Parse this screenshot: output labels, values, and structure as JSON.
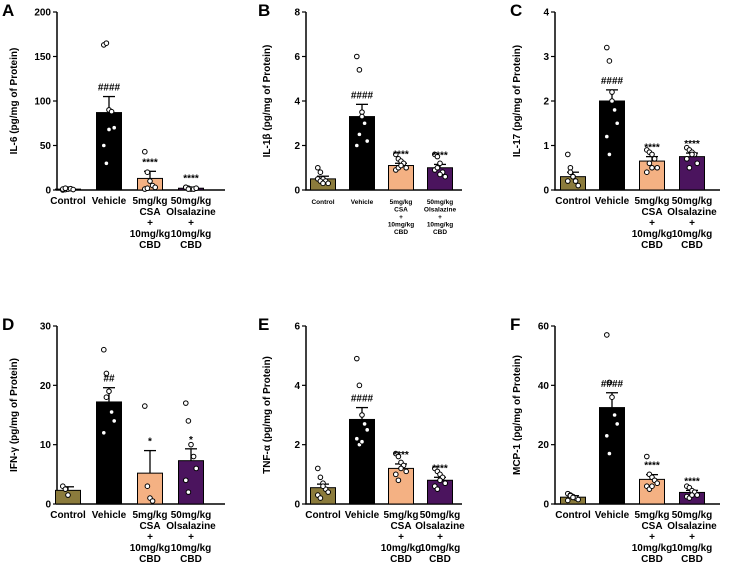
{
  "chart_data": [
    {
      "panel": "A",
      "type": "bar",
      "ylabel": "IL-6 (pg/mg of Protein)",
      "ylim": [
        0,
        200
      ],
      "yticks": [
        "0",
        "50",
        "100",
        "150",
        "200"
      ],
      "categories": [
        {
          "label": "Control",
          "lines": [
            "Control"
          ]
        },
        {
          "label": "Vehicle",
          "lines": [
            "Vehicle"
          ]
        },
        {
          "label": "5mg/kg CSA + 10mg/kg CBD",
          "lines": [
            "5mg/kg",
            "CSA",
            "+",
            "10mg/kg",
            "CBD"
          ]
        },
        {
          "label": "50mg/kg Olsalazine + 10mg/kg CBD",
          "lines": [
            "50mg/kg",
            "Olsalazine",
            "+",
            "10mg/kg",
            "CBD"
          ]
        }
      ],
      "values": [
        1,
        87,
        13,
        2
      ],
      "errors": [
        0.5,
        18,
        8,
        1
      ],
      "points": [
        [
          0,
          0.5,
          1,
          1.5,
          0.5,
          1,
          2
        ],
        [
          163,
          165,
          90,
          88,
          70,
          50,
          30,
          68
        ],
        [
          43,
          20,
          10,
          5,
          3,
          1,
          2
        ],
        [
          3,
          2,
          1,
          1,
          2,
          3,
          1
        ]
      ],
      "significance": [
        "",
        "####",
        "****",
        "****"
      ],
      "colors": [
        "#8b7b3c",
        "#000000",
        "#f4b183",
        "#4b145e"
      ]
    },
    {
      "panel": "B",
      "type": "bar",
      "ylabel": "IL-1β (pg/mg of Protein)",
      "ylim": [
        0,
        8
      ],
      "yticks": [
        "0",
        "2",
        "4",
        "6",
        "8"
      ],
      "categories": [
        {
          "label": "Control",
          "lines": [
            "Control"
          ]
        },
        {
          "label": "Vehicle",
          "lines": [
            "Vehicle"
          ]
        },
        {
          "label": "5mg/kg CSA + 10mg/kg CBD",
          "lines": [
            "5mg/kg",
            "CSA",
            "+",
            "10mg/kg",
            "CBD"
          ]
        },
        {
          "label": "50mg/kg Olsalazine + 10mg/kg CBD",
          "lines": [
            "50mg/kg",
            "Olsalazine",
            "+",
            "10mg/kg",
            "CBD"
          ]
        }
      ],
      "values": [
        0.5,
        3.3,
        1.1,
        1.0
      ],
      "errors": [
        0.12,
        0.55,
        0.1,
        0.15
      ],
      "points": [
        [
          1.0,
          0.8,
          0.5,
          0.4,
          0.3,
          0.5,
          0.4,
          0.3
        ],
        [
          6.0,
          5.4,
          3.5,
          3.0,
          2.2,
          2.0,
          2.5,
          3.3
        ],
        [
          1.6,
          1.4,
          1.3,
          1.2,
          1.0,
          0.9,
          1.0,
          1.1
        ],
        [
          1.6,
          1.5,
          1.2,
          0.8,
          0.6,
          0.9,
          1.0,
          0.7
        ]
      ],
      "significance": [
        "",
        "####",
        "****",
        "****"
      ],
      "colors": [
        "#8b7b3c",
        "#000000",
        "#f4b183",
        "#4b145e"
      ]
    },
    {
      "panel": "C",
      "type": "bar",
      "ylabel": "IL-17 (pg/mg of Protein)",
      "ylim": [
        0,
        4
      ],
      "yticks": [
        "0",
        "1",
        "2",
        "3",
        "4"
      ],
      "categories": [
        {
          "label": "Control",
          "lines": [
            "Control"
          ]
        },
        {
          "label": "Vehicle",
          "lines": [
            "Vehicle"
          ]
        },
        {
          "label": "5mg/kg CSA + 10mg/kg CBD",
          "lines": [
            "5mg/kg",
            "CSA",
            "+",
            "10mg/kg",
            "CBD"
          ]
        },
        {
          "label": "50mg/kg Olsalazine + 10mg/kg CBD",
          "lines": [
            "50mg/kg",
            "Olsalazine",
            "+",
            "10mg/kg",
            "CBD"
          ]
        }
      ],
      "values": [
        0.3,
        2.0,
        0.65,
        0.75
      ],
      "errors": [
        0.1,
        0.25,
        0.1,
        0.08
      ],
      "points": [
        [
          0.8,
          0.5,
          0.3,
          0.2,
          0.1,
          0.2,
          0.4,
          0.3
        ],
        [
          3.2,
          2.9,
          2.2,
          1.8,
          1.5,
          1.2,
          0.8,
          2.0
        ],
        [
          0.9,
          0.85,
          0.8,
          0.7,
          0.5,
          0.4,
          0.6,
          0.5
        ],
        [
          0.95,
          0.9,
          0.85,
          0.8,
          0.6,
          0.7,
          0.5,
          0.8
        ]
      ],
      "significance": [
        "",
        "####",
        "****",
        "****"
      ],
      "colors": [
        "#8b7b3c",
        "#000000",
        "#f4b183",
        "#4b145e"
      ]
    },
    {
      "panel": "D",
      "type": "bar",
      "ylabel": "IFN-γ (pg/mg of Protein)",
      "ylim": [
        0,
        30
      ],
      "yticks": [
        "0",
        "10",
        "20",
        "30"
      ],
      "categories": [
        {
          "label": "Control",
          "lines": [
            "Control"
          ]
        },
        {
          "label": "Vehicle",
          "lines": [
            "Vehicle"
          ]
        },
        {
          "label": "5mg/kg CSA + 10mg/kg CBD",
          "lines": [
            "5mg/kg",
            "CSA",
            "+",
            "10mg/kg",
            "CBD"
          ]
        },
        {
          "label": "50mg/kg Olsalazine + 10mg/kg CBD",
          "lines": [
            "50mg/kg",
            "Olsalazine",
            "+",
            "10mg/kg",
            "CBD"
          ]
        }
      ],
      "values": [
        2.3,
        17.2,
        5.2,
        7.3
      ],
      "errors": [
        0.6,
        2.4,
        3.8,
        2.0
      ],
      "points": [
        [
          3.0,
          2.5,
          1.5
        ],
        [
          26.0,
          22.0,
          19.0,
          15.5,
          14.0,
          12.0,
          18.0
        ],
        [
          16.5,
          3.0,
          1.0,
          0.5
        ],
        [
          17.0,
          14.0,
          10.0,
          8.0,
          6.0,
          4.0,
          2.0
        ]
      ],
      "significance": [
        "",
        "##",
        "*",
        "*"
      ],
      "colors": [
        "#8b7b3c",
        "#000000",
        "#f4b183",
        "#4b145e"
      ]
    },
    {
      "panel": "E",
      "type": "bar",
      "ylabel": "TNF-α (pg/mg of Protein)",
      "ylim": [
        0,
        6
      ],
      "yticks": [
        "0",
        "2",
        "4",
        "6"
      ],
      "categories": [
        {
          "label": "Control",
          "lines": [
            "Control"
          ]
        },
        {
          "label": "Vehicle",
          "lines": [
            "Vehicle"
          ]
        },
        {
          "label": "5mg/kg CSA + 10mg/kg CBD",
          "lines": [
            "5mg/kg",
            "CSA",
            "+",
            "10mg/kg",
            "CBD"
          ]
        },
        {
          "label": "50mg/kg Olsalazine + 10mg/kg CBD",
          "lines": [
            "50mg/kg",
            "Olsalazine",
            "+",
            "10mg/kg",
            "CBD"
          ]
        }
      ],
      "values": [
        0.55,
        2.85,
        1.2,
        0.8
      ],
      "errors": [
        0.12,
        0.4,
        0.15,
        0.1
      ],
      "points": [
        [
          1.2,
          0.9,
          0.7,
          0.5,
          0.4,
          0.3,
          0.2,
          0.6
        ],
        [
          4.9,
          4.0,
          3.0,
          2.7,
          2.5,
          2.2,
          2.0,
          2.1
        ],
        [
          1.7,
          1.6,
          1.4,
          1.3,
          1.1,
          1.0,
          0.8,
          1.2
        ],
        [
          1.2,
          1.1,
          1.0,
          0.9,
          0.7,
          0.6,
          0.5,
          0.8
        ]
      ],
      "significance": [
        "",
        "####",
        "****",
        "****"
      ],
      "colors": [
        "#8b7b3c",
        "#000000",
        "#f4b183",
        "#4b145e"
      ]
    },
    {
      "panel": "F",
      "type": "bar",
      "ylabel": "MCP-1 (pg/mg of Protein)",
      "ylim": [
        0,
        60
      ],
      "yticks": [
        "0",
        "20",
        "40",
        "60"
      ],
      "categories": [
        {
          "label": "Control",
          "lines": [
            "Control"
          ]
        },
        {
          "label": "Vehicle",
          "lines": [
            "Vehicle"
          ]
        },
        {
          "label": "5mg/kg CSA + 10mg/kg CBD",
          "lines": [
            "5mg/kg",
            "CSA",
            "+",
            "10mg/kg",
            "CBD"
          ]
        },
        {
          "label": "50mg/kg Olsalazine + 10mg/kg CBD",
          "lines": [
            "50mg/kg",
            "Olsalazine",
            "+",
            "10mg/kg",
            "CBD"
          ]
        }
      ],
      "values": [
        2.3,
        32.5,
        8.3,
        3.9
      ],
      "errors": [
        0.5,
        5.0,
        1.6,
        0.7
      ],
      "points": [
        [
          3.5,
          3.0,
          2.5,
          2.0,
          1.5,
          1.2,
          2.8,
          2.2
        ],
        [
          57.0,
          41.0,
          36.0,
          30.0,
          27.0,
          23.0,
          17.0
        ],
        [
          16.0,
          10.0,
          9.0,
          8.0,
          7.0,
          6.0,
          5.0,
          6.0
        ],
        [
          6.0,
          5.5,
          4.5,
          4.0,
          3.0,
          2.5,
          2.0,
          3.0
        ]
      ],
      "significance": [
        "",
        "####",
        "****",
        "****"
      ],
      "colors": [
        "#8b7b3c",
        "#000000",
        "#f4b183",
        "#4b145e"
      ]
    }
  ]
}
